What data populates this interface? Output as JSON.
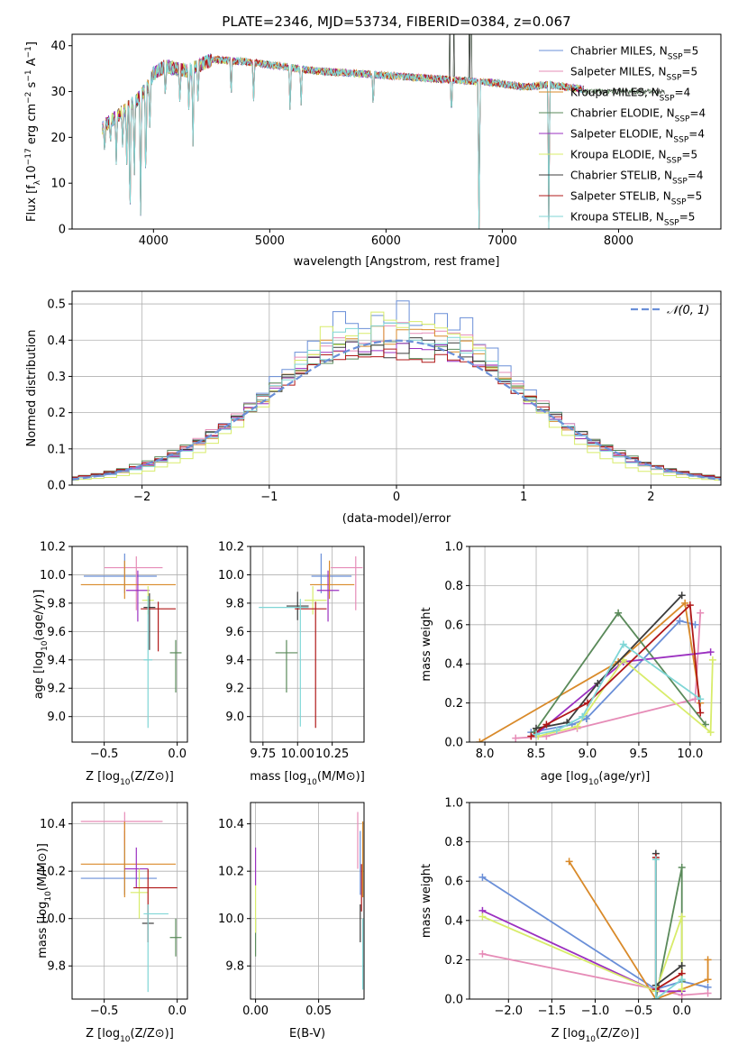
{
  "figure_title": "PLATE=2346, MJD=53734, FIBERID=0384, z=0.067",
  "colors": [
    "#6a8fd8",
    "#e68cb7",
    "#d98a2a",
    "#5a8a5a",
    "#9b30c0",
    "#d8ec6a",
    "#3c3c3c",
    "#b01818",
    "#7fd6d6"
  ],
  "legend": [
    {
      "pre": "Chabrier MILES, N",
      "sub": "SSP",
      "post": "=5"
    },
    {
      "pre": "Salpeter MILES, N",
      "sub": "SSP",
      "post": "=5"
    },
    {
      "pre": "Kroupa MILES, N",
      "sub": "SSP",
      "post": "=4"
    },
    {
      "pre": "Chabrier ELODIE, N",
      "sub": "SSP",
      "post": "=4"
    },
    {
      "pre": "Salpeter ELODIE, N",
      "sub": "SSP",
      "post": "=4"
    },
    {
      "pre": "Kroupa ELODIE, N",
      "sub": "SSP",
      "post": "=5"
    },
    {
      "pre": "Chabrier STELIB, N",
      "sub": "SSP",
      "post": "=4"
    },
    {
      "pre": "Salpeter STELIB, N",
      "sub": "SSP",
      "post": "=5"
    },
    {
      "pre": "Kroupa STELIB, N",
      "sub": "SSP",
      "post": "=5"
    }
  ],
  "chart_data": [
    {
      "id": "spectrum",
      "type": "line",
      "xlabel": "wavelength [Angstrom, rest frame]",
      "ylabel": "Flux [fλ10⁻¹⁷ erg cm⁻² s⁻¹ A⁻¹]",
      "xlim": [
        3300,
        8880
      ],
      "ylim": [
        0,
        42.5
      ],
      "xticks": [
        4000,
        5000,
        6000,
        7000,
        8000
      ],
      "yticks": [
        0,
        10,
        20,
        30,
        40
      ],
      "continuum": [
        [
          3560,
          22
        ],
        [
          3650,
          24
        ],
        [
          3750,
          26
        ],
        [
          3850,
          28
        ],
        [
          3950,
          31
        ],
        [
          4000,
          34
        ],
        [
          4100,
          35.5
        ],
        [
          4300,
          34.5
        ],
        [
          4500,
          37
        ],
        [
          4800,
          36.5
        ],
        [
          5100,
          35.5
        ],
        [
          5400,
          34.5
        ],
        [
          5700,
          34
        ],
        [
          6000,
          33.5
        ],
        [
          6300,
          33
        ],
        [
          6600,
          32.5
        ],
        [
          6900,
          32
        ],
        [
          7200,
          31
        ],
        [
          7400,
          31.5
        ],
        [
          7700,
          30.5
        ]
      ],
      "absorption_lines": [
        [
          3580,
          16
        ],
        [
          3630,
          18
        ],
        [
          3680,
          14
        ],
        [
          3735,
          17
        ],
        [
          3770,
          14
        ],
        [
          3798,
          0
        ],
        [
          3835,
          10
        ],
        [
          3889,
          0
        ],
        [
          3934,
          9
        ],
        [
          3969,
          21
        ],
        [
          4102,
          28
        ],
        [
          4227,
          27
        ],
        [
          4304,
          26
        ],
        [
          4340,
          18
        ],
        [
          4383,
          27
        ],
        [
          4668,
          28
        ],
        [
          4861,
          27
        ],
        [
          5175,
          25
        ],
        [
          5270,
          27
        ],
        [
          5890,
          26
        ],
        [
          6563,
          24
        ],
        [
          6800,
          0
        ],
        [
          7400,
          0
        ]
      ],
      "emission_spikes": [
        [
          6548,
          42.5
        ],
        [
          6583,
          42.5
        ],
        [
          6717,
          42.5
        ],
        [
          6731,
          42.5
        ]
      ]
    },
    {
      "id": "residuals",
      "type": "histogram",
      "xlabel": "(data-model)/error",
      "ylabel": "Normed distribution",
      "xlim": [
        -2.55,
        2.55
      ],
      "ylim": [
        0,
        0.535
      ],
      "xticks": [
        -2,
        -1,
        0,
        1,
        2
      ],
      "yticks": [
        0.0,
        0.1,
        0.2,
        0.3,
        0.4,
        0.5
      ],
      "bin_width": 0.1,
      "reference_curve": "N(0,1)",
      "legend_label": "𝒩(0, 1)",
      "series_peaks": [
        0.51,
        0.46,
        0.45,
        0.42,
        0.43,
        0.49,
        0.42,
        0.41,
        0.45
      ],
      "series_sigma": [
        0.88,
        0.93,
        0.9,
        0.97,
        0.92,
        0.82,
        0.95,
        0.96,
        0.9
      ]
    },
    {
      "id": "age_vs_Z",
      "type": "errorbar",
      "xlabel_pre": "Z [log",
      "xlabel_sub": "10",
      "xlabel_post": "(Z/Z⊙)]",
      "ylabel_pre": "age  [log",
      "ylabel_sub": "10",
      "ylabel_post": "(age/yr)]",
      "xlim": [
        -0.72,
        0.07
      ],
      "ylim": [
        8.82,
        10.2
      ],
      "xticks": [
        -0.5,
        0.0
      ],
      "yticks": [
        9.0,
        9.2,
        9.4,
        9.6,
        9.8,
        10.0,
        10.2
      ],
      "points": [
        {
          "x": -0.36,
          "xl": 0.28,
          "xr": 0.22,
          "y": 9.99,
          "yd": 0.12,
          "yu": 0.16
        },
        {
          "x": -0.28,
          "xl": 0.22,
          "xr": 0.18,
          "y": 10.05,
          "yd": 0.3,
          "yu": 0.08
        },
        {
          "x": -0.36,
          "xl": 0.3,
          "xr": 0.35,
          "y": 9.93,
          "yd": 0.1,
          "yu": 0.17
        },
        {
          "x": -0.01,
          "xl": 0.04,
          "xr": 0.04,
          "y": 9.45,
          "yd": 0.28,
          "yu": 0.09
        },
        {
          "x": -0.27,
          "xl": 0.08,
          "xr": 0.08,
          "y": 9.89,
          "yd": 0.22,
          "yu": 0.14
        },
        {
          "x": -0.2,
          "xl": 0.04,
          "xr": 0.04,
          "y": 9.82,
          "yd": 0.1,
          "yu": 0.1
        },
        {
          "x": -0.19,
          "xl": 0.04,
          "xr": 0.04,
          "y": 9.77,
          "yd": 0.3,
          "yu": 0.1
        },
        {
          "x": -0.13,
          "xl": 0.12,
          "xr": 0.12,
          "y": 9.76,
          "yd": 0.3,
          "yu": 0.05
        },
        {
          "x": -0.2,
          "xl": 0.03,
          "xr": 0.03,
          "y": 9.4,
          "yd": 0.48,
          "yu": 0.45
        }
      ]
    },
    {
      "id": "age_vs_mass",
      "type": "errorbar",
      "xlabel_pre": "mass [log",
      "xlabel_sub": "10",
      "xlabel_post": "(M/M⊙)]",
      "ylabel_pre": "",
      "ylabel_sub": "",
      "ylabel_post": "",
      "xlim": [
        9.66,
        10.48
      ],
      "ylim": [
        8.82,
        10.2
      ],
      "xticks": [
        9.75,
        10.0,
        10.25
      ],
      "xticklabels": [
        "9.75",
        "10.00",
        "10.25"
      ],
      "yticks": [
        9.0,
        9.2,
        9.4,
        9.6,
        9.8,
        10.0,
        10.2
      ],
      "points": [
        {
          "x": 10.17,
          "xl": 0.07,
          "xr": 0.22,
          "y": 9.99,
          "yd": 0.12,
          "yu": 0.16
        },
        {
          "x": 10.42,
          "xl": 0.18,
          "xr": 0.05,
          "y": 10.05,
          "yd": 0.3,
          "yu": 0.08
        },
        {
          "x": 10.23,
          "xl": 0.14,
          "xr": 0.18,
          "y": 9.93,
          "yd": 0.1,
          "yu": 0.17
        },
        {
          "x": 9.92,
          "xl": 0.08,
          "xr": 0.08,
          "y": 9.45,
          "yd": 0.28,
          "yu": 0.09
        },
        {
          "x": 10.22,
          "xl": 0.08,
          "xr": 0.08,
          "y": 9.89,
          "yd": 0.22,
          "yu": 0.14
        },
        {
          "x": 10.11,
          "xl": 0.06,
          "xr": 0.1,
          "y": 9.82,
          "yd": 0.1,
          "yu": 0.1
        },
        {
          "x": 10.0,
          "xl": 0.08,
          "xr": 0.08,
          "y": 9.78,
          "yd": 0.1,
          "yu": 0.1
        },
        {
          "x": 10.13,
          "xl": 0.15,
          "xr": 0.08,
          "y": 9.76,
          "yd": 0.84,
          "yu": 0.05
        },
        {
          "x": 10.02,
          "xl": 0.3,
          "xr": 0.06,
          "y": 9.77,
          "yd": 0.84,
          "yu": 0.06
        }
      ]
    },
    {
      "id": "massweight_vs_age",
      "type": "line",
      "xlabel_pre": "age  [log",
      "xlabel_sub": "10",
      "xlabel_post": "(age/yr)]",
      "ylabel": "mass weight",
      "xlim": [
        7.85,
        10.3
      ],
      "ylim": [
        0,
        1.0
      ],
      "xticks": [
        8.0,
        8.5,
        9.0,
        9.5,
        10.0
      ],
      "yticks": [
        0.0,
        0.2,
        0.4,
        0.6,
        0.8,
        1.0
      ],
      "series": [
        [
          [
            8.45,
            0.05
          ],
          [
            8.85,
            0.09
          ],
          [
            8.99,
            0.12
          ],
          [
            9.9,
            0.62
          ],
          [
            10.05,
            0.6
          ]
        ],
        [
          [
            8.3,
            0.02
          ],
          [
            8.6,
            0.03
          ],
          [
            8.9,
            0.07
          ],
          [
            10.05,
            0.22
          ],
          [
            10.1,
            0.66
          ]
        ],
        [
          [
            7.95,
            0.0
          ],
          [
            9.3,
            0.41
          ],
          [
            9.95,
            0.71
          ],
          [
            10.1,
            0.2
          ]
        ],
        [
          [
            8.48,
            0.05
          ],
          [
            9.3,
            0.66
          ],
          [
            10.15,
            0.09
          ]
        ],
        [
          [
            8.5,
            0.04
          ],
          [
            9.35,
            0.41
          ],
          [
            10.2,
            0.46
          ]
        ],
        [
          [
            8.52,
            0.03
          ],
          [
            8.9,
            0.08
          ],
          [
            9.35,
            0.42
          ],
          [
            10.2,
            0.05
          ],
          [
            10.22,
            0.42
          ]
        ],
        [
          [
            8.5,
            0.07
          ],
          [
            8.8,
            0.1
          ],
          [
            9.1,
            0.3
          ],
          [
            9.92,
            0.75
          ]
        ],
        [
          [
            8.45,
            0.03
          ],
          [
            8.6,
            0.09
          ],
          [
            9.0,
            0.2
          ],
          [
            10.0,
            0.7
          ],
          [
            10.1,
            0.15
          ]
        ],
        [
          [
            8.5,
            0.04
          ],
          [
            8.7,
            0.06
          ],
          [
            8.95,
            0.13
          ],
          [
            9.35,
            0.5
          ],
          [
            10.1,
            0.22
          ]
        ]
      ]
    },
    {
      "id": "mass_vs_Z",
      "type": "errorbar",
      "xlabel_pre": "Z [log",
      "xlabel_sub": "10",
      "xlabel_post": "(Z/Z⊙)]",
      "ylabel_pre": "mass [log",
      "ylabel_sub": "10",
      "ylabel_post": "(M/M⊙)]",
      "xlim": [
        -0.72,
        0.07
      ],
      "ylim": [
        9.66,
        10.49
      ],
      "xticks": [
        -0.5,
        0.0
      ],
      "yticks": [
        9.8,
        10.0,
        10.2,
        10.4
      ],
      "points": [
        {
          "x": -0.36,
          "xl": 0.3,
          "xr": 0.22,
          "y": 10.17,
          "yd": 0.07,
          "yu": 0.2
        },
        {
          "x": -0.36,
          "xl": 0.3,
          "xr": 0.26,
          "y": 10.41,
          "yd": 0.1,
          "yu": 0.04
        },
        {
          "x": -0.36,
          "xl": 0.3,
          "xr": 0.35,
          "y": 10.23,
          "yd": 0.14,
          "yu": 0.18
        },
        {
          "x": -0.01,
          "xl": 0.04,
          "xr": 0.04,
          "y": 9.92,
          "yd": 0.08,
          "yu": 0.08
        },
        {
          "x": -0.28,
          "xl": 0.08,
          "xr": 0.08,
          "y": 10.21,
          "yd": 0.08,
          "yu": 0.09
        },
        {
          "x": -0.26,
          "xl": 0.06,
          "xr": 0.06,
          "y": 10.11,
          "yd": 0.11,
          "yu": 0.1
        },
        {
          "x": -0.2,
          "xl": 0.04,
          "xr": 0.04,
          "y": 9.98,
          "yd": 0.08,
          "yu": 0.08
        },
        {
          "x": -0.2,
          "xl": 0.1,
          "xr": 0.2,
          "y": 10.13,
          "yd": 0.23,
          "yu": 0.08
        },
        {
          "x": -0.2,
          "xl": 0.03,
          "xr": 0.14,
          "y": 10.02,
          "yd": 0.33,
          "yu": 0.04
        }
      ]
    },
    {
      "id": "mass_vs_EBV",
      "type": "errorbar",
      "xlabel": "E(B-V)",
      "ylabel_pre": "",
      "ylabel_sub": "",
      "ylabel_post": "",
      "xlim": [
        -0.004,
        0.086
      ],
      "ylim": [
        9.66,
        10.49
      ],
      "xticks": [
        0.0,
        0.05
      ],
      "xticklabels": [
        "0.00",
        "0.05"
      ],
      "yticks": [
        9.8,
        10.0,
        10.2,
        10.4
      ],
      "points": [
        {
          "x": 0.083,
          "xl": 0,
          "xr": 0,
          "y": 10.17,
          "yd": 0.07,
          "yu": 0.2
        },
        {
          "x": 0.081,
          "xl": 0,
          "xr": 0,
          "y": 10.31,
          "yd": 0.1,
          "yu": 0.14
        },
        {
          "x": 0.085,
          "xl": 0,
          "xr": 0,
          "y": 10.23,
          "yd": 0.14,
          "yu": 0.18
        },
        {
          "x": 0.0,
          "xl": 0,
          "xr": 0,
          "y": 9.92,
          "yd": 0.08,
          "yu": 0.08
        },
        {
          "x": 0.0,
          "xl": 0,
          "xr": 0,
          "y": 10.22,
          "yd": 0.08,
          "yu": 0.08
        },
        {
          "x": 0.0,
          "xl": 0,
          "xr": 0,
          "y": 10.04,
          "yd": 0.1,
          "yu": 0.1
        },
        {
          "x": 0.083,
          "xl": 0,
          "xr": 0,
          "y": 9.98,
          "yd": 0.08,
          "yu": 0.08
        },
        {
          "x": 0.084,
          "xl": 0,
          "xr": 0,
          "y": 10.13,
          "yd": 0.1,
          "yu": 0.1
        },
        {
          "x": 0.085,
          "xl": 0,
          "xr": 0,
          "y": 9.95,
          "yd": 0.25,
          "yu": 0.05
        }
      ]
    },
    {
      "id": "massweight_vs_Z",
      "type": "line",
      "xlabel_pre": "Z [log",
      "xlabel_sub": "10",
      "xlabel_post": "(Z/Z⊙)]",
      "ylabel": "mass weight",
      "xlim": [
        -2.45,
        0.45
      ],
      "ylim": [
        0,
        1.0
      ],
      "xticks": [
        -2.0,
        -1.5,
        -1.0,
        -0.5,
        0.0
      ],
      "yticks": [
        0.0,
        0.2,
        0.4,
        0.6,
        0.8,
        1.0
      ],
      "series": [
        [
          [
            -2.3,
            0.62
          ],
          [
            -0.3,
            0.05
          ],
          [
            0.0,
            0.09
          ],
          [
            0.3,
            0.06
          ]
        ],
        [
          [
            -2.3,
            0.23
          ],
          [
            -0.3,
            0.05
          ],
          [
            0.0,
            0.02
          ],
          [
            0.3,
            0.03
          ]
        ],
        [
          [
            -1.3,
            0.7
          ],
          [
            -0.3,
            0.0
          ],
          [
            0.3,
            0.1
          ],
          [
            0.3,
            0.2
          ]
        ],
        [
          [
            -0.3,
            0.0
          ],
          [
            0.0,
            0.67
          ],
          [
            0.0,
            0.09
          ]
        ],
        [
          [
            -2.3,
            0.45
          ],
          [
            -0.3,
            0.04
          ],
          [
            0.0,
            0.04
          ]
        ],
        [
          [
            -2.3,
            0.42
          ],
          [
            -0.3,
            0.04
          ],
          [
            0.0,
            0.42
          ],
          [
            0.0,
            0.05
          ]
        ],
        [
          [
            -0.3,
            0.74
          ],
          [
            -0.3,
            0.07
          ],
          [
            0.0,
            0.17
          ]
        ],
        [
          [
            -0.3,
            0.72
          ],
          [
            -0.3,
            0.05
          ],
          [
            0.0,
            0.13
          ]
        ],
        [
          [
            -0.3,
            0.71
          ],
          [
            -0.3,
            0.0
          ],
          [
            0.0,
            0.1
          ]
        ]
      ]
    }
  ]
}
